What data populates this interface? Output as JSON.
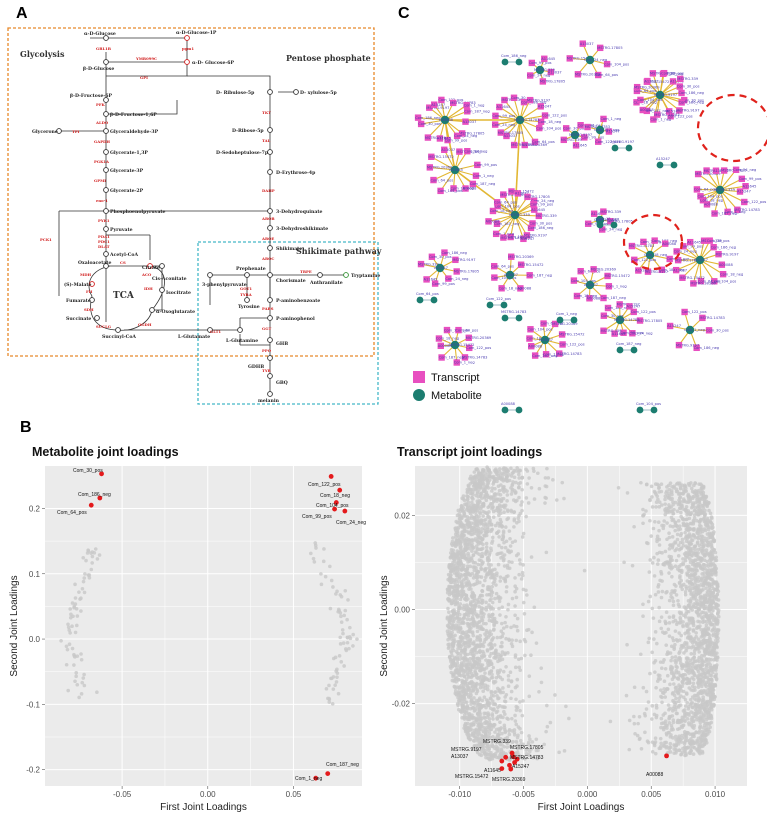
{
  "panels": {
    "a": {
      "letter": "A"
    },
    "b": {
      "letter": "B"
    },
    "c": {
      "letter": "C"
    }
  },
  "pathway": {
    "glycolysis_title": "Glycolysis",
    "pentose_title": "Pentose phosphate",
    "shikimate_title": "Shikimate pathway",
    "tca_title": "TCA",
    "colors": {
      "glycolysis_box": "#e8892a",
      "shikimate_box": "#45b8c8",
      "enzyme": "#d01a1a",
      "node_red": "#d01a1a",
      "node_green": "#2f8f2f"
    },
    "metabolites": {
      "a_d_glucose": "α-D-Glucose",
      "a_d_glucose_1p": "α-D-Glucose-1P",
      "b_d_glucose": "β-D-Glucose",
      "a_d_glucose_6p": "α-D- Glucose-6P",
      "b_d_fructose_6p": "β-D-Fructose-6P",
      "b_d_fructose_16p": "β-D-Fructose-1,6P",
      "glycerone": "Glycerone",
      "glyceraldehyde_3p": "Glyceraldehyde-3P",
      "glycerate_13p": "Glycerate-1,3P",
      "glycerate_3p": "Glycerate-3P",
      "glycerate_2p": "Glycerate-2P",
      "pep": "Phosphoenolpyruvate",
      "pyruvate": "Pyruvate",
      "acetyl_coa": "Acetyl-CoA",
      "oxaloacetate": "Oxaloacetate",
      "citrate": "Citrate",
      "cis_aconitate": "Cis-Aconitate",
      "s_malate": "(S)-Malate",
      "fumarate": "Fumarate",
      "succinate": "Succinate",
      "succinyl_coa": "Succinyl-CoA",
      "isocitrate": "Isocitrate",
      "a_oxoglutarate": "α-Oxoglutarate",
      "l_glutamate": "L-Glutamate",
      "l_glutamine": "L-Glutamine",
      "d_ribulose_5p": "D- Ribulose-5p",
      "d_xylulose_5p": "D- xylulose-5p",
      "d_ribose_5p": "D-Ribose-5p",
      "d_sedoheptulose_7p": "D-Sedoheptulose-7p",
      "d_erythrose_4p": "D-Erythrose-4p",
      "dehydroquinate": "3-Dehydroquinate",
      "dehydroshikimate": "3-Dehydroshikimate",
      "shikimate": "Shikimate",
      "prephenate": "Prephenate",
      "phenylpyruvate": "3-phenylpyruvate",
      "chorismate": "Chorismate",
      "anthranilate": "Anthranilate",
      "tryptamine": "Tryptamine",
      "tyrosine": "Tyrosine",
      "p_aminobenzoate": "P-aminobenzoate",
      "p_aminophenol": "P-aminophenol",
      "ghb": "GHB",
      "gdhb": "GDHB",
      "gbq": "GBQ",
      "melanin": "melanin"
    },
    "enzymes": {
      "gbl1b": "GBL1B",
      "pgm1": "pgm1",
      "yml": "YMR099C",
      "gpi": "GPI",
      "pfk": "PFK",
      "aldo": "ALDO",
      "tpi": "TPI",
      "gapdh": "GAPDH",
      "pgk": "PGK1A",
      "gpmi": "GPMI",
      "eno": "eno-1",
      "pyk": "PYK1",
      "pck": "PCK1",
      "pda": "PDA1",
      "pdc": "PDC1",
      "dlat": "DLAT",
      "cs": "CS",
      "aco": "ACO",
      "idh": "IDH",
      "ogdh": "OGDH",
      "suc": "SUCLG",
      "sdh": "SDH",
      "fh": "FH",
      "mdh": "MDH",
      "rpe": "rpe",
      "tkt": "TKT",
      "tal": "TAL",
      "aroa": "DAHP",
      "arob": "AROB",
      "aroq": "AROQ",
      "aroe": "AROE",
      "aroc": "AROC",
      "trpe": "TRPE",
      "got": "GOT1",
      "tyra": "TYRA",
      "pabs": "PABS",
      "glt": "GLT1",
      "gls": "GLS",
      "ggt": "GGT",
      "ppo": "PPO",
      "tyr": "TYR"
    }
  },
  "plot_b1": {
    "title": "Metabolite joint loadings",
    "xlabel": "First Joint Loadings",
    "ylabel": "Second Joint Loadings",
    "colors": {
      "background": "#ebebeb",
      "grid": "#ffffff",
      "point": "#c8c8c8",
      "highlight": "#e41a1c"
    },
    "chart_data": {
      "type": "scatter",
      "xlim": [
        -0.095,
        0.09
      ],
      "ylim": [
        -0.225,
        0.265
      ],
      "xticks": [
        -0.05,
        0.0,
        0.05
      ],
      "xtick_labels": [
        "-0.05",
        "0.00",
        "0.05"
      ],
      "yticks": [
        -0.2,
        -0.1,
        0.0,
        0.1,
        0.2
      ],
      "ytick_labels": [
        "-0.2",
        "-0.1",
        "0.0",
        "0.1",
        "0.2"
      ],
      "highlighted": [
        {
          "label": "Com_30_pos",
          "x": -0.062,
          "y": 0.253
        },
        {
          "label": "Com_186_neg",
          "x": -0.063,
          "y": 0.216
        },
        {
          "label": "Com_64_pos",
          "x": -0.068,
          "y": 0.205
        },
        {
          "label": "Com_122_pos",
          "x": 0.072,
          "y": 0.249
        },
        {
          "label": "Com_18_neg",
          "x": 0.077,
          "y": 0.228
        },
        {
          "label": "Com_104_pos",
          "x": 0.075,
          "y": 0.209
        },
        {
          "label": "Com_99_pos",
          "x": 0.074,
          "y": 0.199
        },
        {
          "label": "Com_24_neg",
          "x": 0.08,
          "y": 0.196
        },
        {
          "label": "Com_187_neg",
          "x": 0.07,
          "y": -0.206
        },
        {
          "label": "Com_1_neg",
          "x": 0.063,
          "y": -0.213
        }
      ]
    }
  },
  "plot_b2": {
    "title": "Transcript joint loadings",
    "xlabel": "First Joint Loadings",
    "ylabel": "Second Joint Loadings",
    "colors": {
      "background": "#ebebeb",
      "grid": "#ffffff",
      "point": "#c8c8c8",
      "highlight": "#e41a1c"
    },
    "chart_data": {
      "type": "scatter",
      "xlim": [
        -0.0135,
        0.0125
      ],
      "ylim": [
        -0.0375,
        0.0305
      ],
      "xticks": [
        -0.01,
        -0.005,
        0.0,
        0.005,
        0.01
      ],
      "xtick_labels": [
        "-0.010",
        "-0.005",
        "0.000",
        "0.005",
        "0.010"
      ],
      "yticks": [
        -0.02,
        0.0,
        0.02
      ],
      "ytick_labels": [
        "-0.02",
        "0.00",
        "0.02"
      ],
      "highlighted": [
        {
          "label": "MSTRG.339",
          "x": -0.0059,
          "y": -0.0305
        },
        {
          "label": "MSTRG.9197",
          "x": -0.0064,
          "y": -0.0314
        },
        {
          "label": "MSTRG.17805",
          "x": -0.0058,
          "y": -0.0313
        },
        {
          "label": "A13037",
          "x": -0.0067,
          "y": -0.0322
        },
        {
          "label": "MSTRG.14783",
          "x": -0.0055,
          "y": -0.0318
        },
        {
          "label": "A15247",
          "x": -0.0057,
          "y": -0.0325
        },
        {
          "label": "A11645",
          "x": -0.0061,
          "y": -0.0331
        },
        {
          "label": "MSTRG.15472",
          "x": -0.0067,
          "y": -0.0338
        },
        {
          "label": "MSTRG.20369",
          "x": -0.006,
          "y": -0.0339
        },
        {
          "label": "A00088",
          "x": 0.0062,
          "y": -0.0311
        }
      ]
    }
  },
  "network": {
    "legend": {
      "transcript": "Transcript",
      "metabolite": "Metabolite"
    },
    "colors": {
      "transcript": "#e84fc0",
      "metabolite": "#1c7d70",
      "edge": "#e2b733",
      "label": "#4a3cb0",
      "highlight": "#e0221c"
    },
    "sample_labels": [
      "A13037",
      "MSTRG.17805",
      "Com_24_neg",
      "Com_99_pos",
      "A11645",
      "MSTRG.339",
      "Com_30_pos",
      "Com_186_neg",
      "MSTRG.9197",
      "A15247",
      "Com_122_pos",
      "MSTRG.14783",
      "Com_1_neg",
      "Com_187_neg",
      "A00088",
      "Com_18_neg",
      "Com_104_pos",
      "Com_64_pos",
      "MSTRG.20369",
      "MSTRG.15472"
    ]
  }
}
